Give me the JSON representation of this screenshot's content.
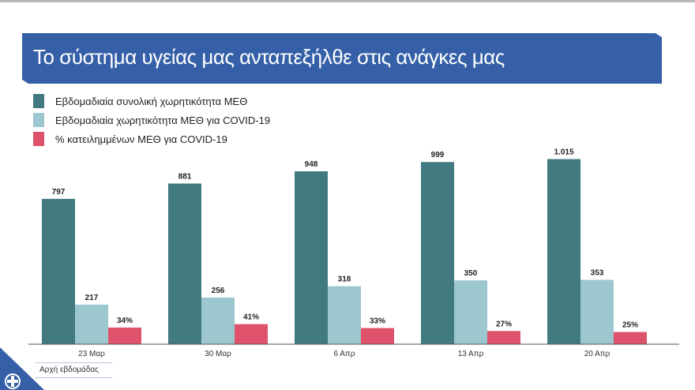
{
  "title": "Το σύστημα υγείας μας ανταπεξήλθε στις ανάγκες μας",
  "chart_data": {
    "type": "bar",
    "categories": [
      "23 Μαρ",
      "30 Μαρ",
      "6 Απρ",
      "13 Απρ",
      "20 Απρ"
    ],
    "series": [
      {
        "name": "Εβδομαδιαία συνολική χωρητικότητα ΜΕΘ",
        "values": [
          797,
          881,
          948,
          999,
          1015
        ],
        "labels": [
          "797",
          "881",
          "948",
          "999",
          "1.015"
        ],
        "color": "#427a82"
      },
      {
        "name": "Εβδομαδιαία χωρητικότητα ΜΕΘ για COVID-19",
        "values": [
          217,
          256,
          318,
          350,
          353
        ],
        "labels": [
          "217",
          "256",
          "318",
          "350",
          "353"
        ],
        "color": "#9cc7cf"
      },
      {
        "name": "% κατειλημμένων ΜΕΘ για COVID-19",
        "values": [
          34,
          41,
          33,
          27,
          25
        ],
        "labels": [
          "34%",
          "41%",
          "33%",
          "27%",
          "25%"
        ],
        "color": "#de536b"
      }
    ],
    "xlabel": "Αρχή εβδομάδας",
    "legend": "top-left",
    "grid": false
  }
}
